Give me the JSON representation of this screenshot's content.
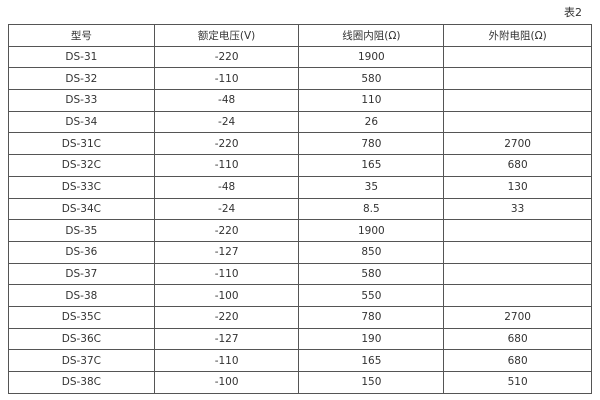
{
  "caption": "表2",
  "table": {
    "headers": [
      "型号",
      "额定电压(V)",
      "线圈内阻(Ω)",
      "外附电阻(Ω)"
    ],
    "rows": [
      [
        "DS-31",
        "-220",
        "1900",
        ""
      ],
      [
        "DS-32",
        "-110",
        "580",
        ""
      ],
      [
        "DS-33",
        "-48",
        "110",
        ""
      ],
      [
        "DS-34",
        "-24",
        "26",
        ""
      ],
      [
        "DS-31C",
        "-220",
        "780",
        "2700"
      ],
      [
        "DS-32C",
        "-110",
        "165",
        "680"
      ],
      [
        "DS-33C",
        "-48",
        "35",
        "130"
      ],
      [
        "DS-34C",
        "-24",
        "8.5",
        "33"
      ],
      [
        "DS-35",
        "-220",
        "1900",
        ""
      ],
      [
        "DS-36",
        "-127",
        "850",
        ""
      ],
      [
        "DS-37",
        "-110",
        "580",
        ""
      ],
      [
        "DS-38",
        "-100",
        "550",
        ""
      ],
      [
        "DS-35C",
        "-220",
        "780",
        "2700"
      ],
      [
        "DS-36C",
        "-127",
        "190",
        "680"
      ],
      [
        "DS-37C",
        "-110",
        "165",
        "680"
      ],
      [
        "DS-38C",
        "-100",
        "150",
        "510"
      ]
    ]
  }
}
